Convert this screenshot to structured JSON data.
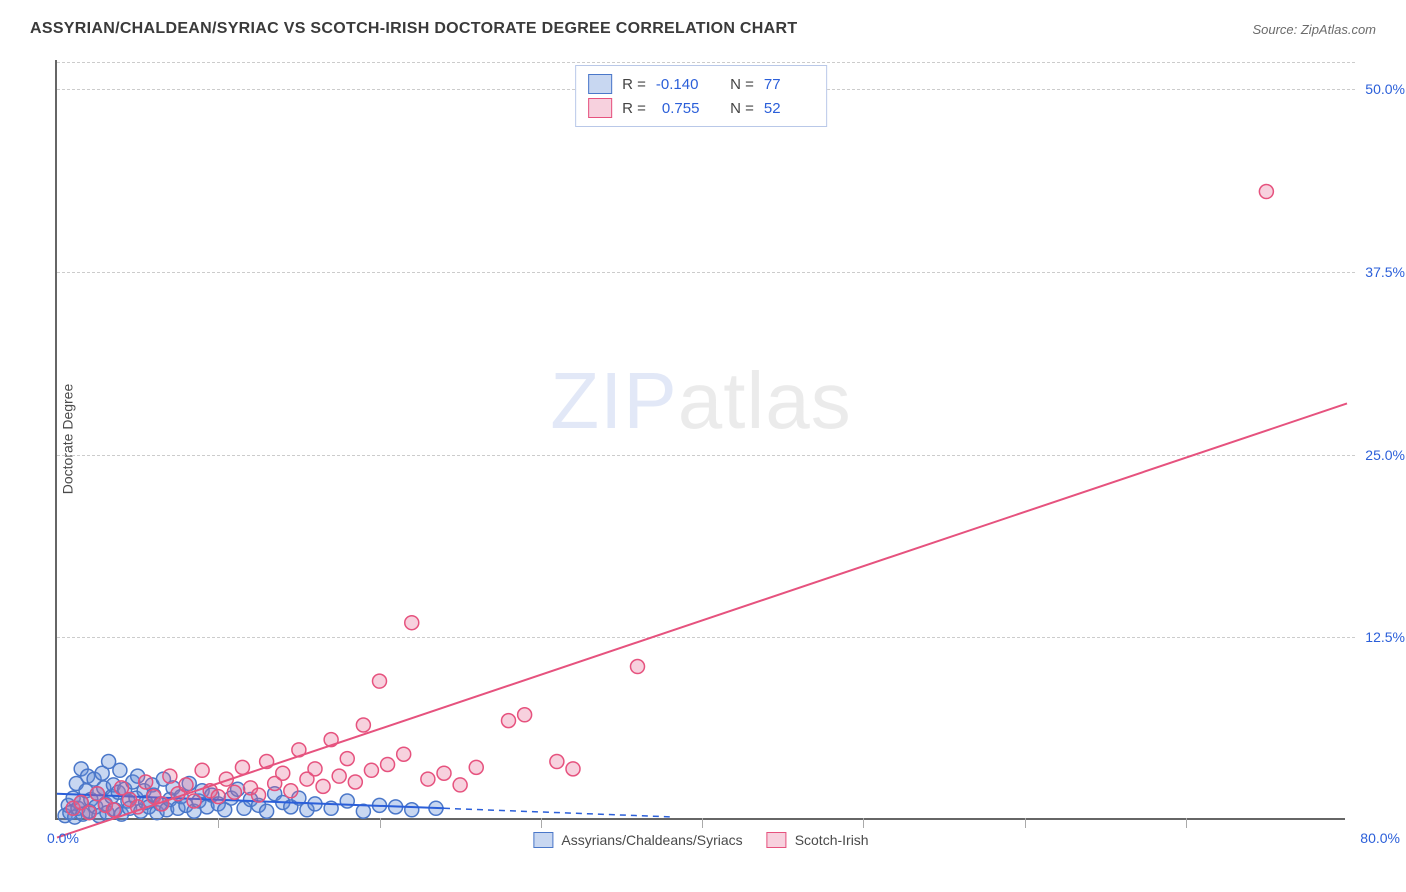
{
  "title": "ASSYRIAN/CHALDEAN/SYRIAC VS SCOTCH-IRISH DOCTORATE DEGREE CORRELATION CHART",
  "source": "Source: ZipAtlas.com",
  "watermark_a": "ZIP",
  "watermark_b": "atlas",
  "y_axis_title": "Doctorate Degree",
  "chart": {
    "type": "scatter",
    "xlim": [
      0,
      80
    ],
    "ylim": [
      0,
      52
    ],
    "x_origin_label": "0.0%",
    "x_max_label": "80.0%",
    "y_ticks": [
      12.5,
      25.0,
      37.5,
      50.0
    ],
    "y_tick_labels": [
      "12.5%",
      "25.0%",
      "37.5%",
      "50.0%"
    ],
    "x_tick_positions": [
      10,
      20,
      30,
      40,
      50,
      60,
      70
    ],
    "grid_color": "#cccccc",
    "background_color": "#ffffff",
    "marker_radius": 7,
    "marker_stroke_width": 1.5,
    "line_width": 2,
    "series": [
      {
        "name": "Assyrians/Chaldeans/Syriacs",
        "color_fill": "rgba(96,141,214,0.35)",
        "color_stroke": "#4a77c9",
        "line_color": "#2b5fd9",
        "R": "-0.140",
        "N": "77",
        "fit_line": {
          "x1": 0,
          "y1": 1.8,
          "x2": 24,
          "y2": 0.8,
          "dash_extend_to_x": 38
        },
        "points": [
          [
            0.5,
            0.3
          ],
          [
            0.7,
            1.0
          ],
          [
            0.8,
            0.5
          ],
          [
            1.0,
            1.5
          ],
          [
            1.1,
            0.2
          ],
          [
            1.2,
            2.5
          ],
          [
            1.3,
            0.8
          ],
          [
            1.5,
            3.5
          ],
          [
            1.5,
            1.2
          ],
          [
            1.6,
            0.4
          ],
          [
            1.8,
            2.0
          ],
          [
            1.9,
            3.0
          ],
          [
            2.0,
            0.6
          ],
          [
            2.1,
            1.4
          ],
          [
            2.3,
            2.8
          ],
          [
            2.4,
            0.9
          ],
          [
            2.5,
            1.8
          ],
          [
            2.6,
            0.3
          ],
          [
            2.8,
            3.2
          ],
          [
            2.9,
            2.2
          ],
          [
            3.0,
            1.1
          ],
          [
            3.1,
            0.5
          ],
          [
            3.2,
            4.0
          ],
          [
            3.4,
            1.6
          ],
          [
            3.5,
            2.4
          ],
          [
            3.6,
            0.7
          ],
          [
            3.8,
            1.9
          ],
          [
            3.9,
            3.4
          ],
          [
            4.0,
            0.4
          ],
          [
            4.2,
            2.1
          ],
          [
            4.4,
            1.3
          ],
          [
            4.5,
            0.8
          ],
          [
            4.7,
            2.6
          ],
          [
            4.9,
            1.5
          ],
          [
            5.0,
            3.0
          ],
          [
            5.2,
            0.6
          ],
          [
            5.4,
            2.0
          ],
          [
            5.5,
            1.2
          ],
          [
            5.7,
            0.9
          ],
          [
            5.9,
            2.4
          ],
          [
            6.0,
            1.7
          ],
          [
            6.2,
            0.5
          ],
          [
            6.4,
            1.1
          ],
          [
            6.6,
            2.8
          ],
          [
            6.8,
            0.7
          ],
          [
            7.0,
            1.4
          ],
          [
            7.2,
            2.2
          ],
          [
            7.5,
            0.8
          ],
          [
            7.7,
            1.6
          ],
          [
            8.0,
            1.0
          ],
          [
            8.2,
            2.5
          ],
          [
            8.5,
            0.6
          ],
          [
            8.8,
            1.3
          ],
          [
            9.0,
            2.0
          ],
          [
            9.3,
            0.9
          ],
          [
            9.6,
            1.7
          ],
          [
            10.0,
            1.1
          ],
          [
            10.4,
            0.7
          ],
          [
            10.8,
            1.5
          ],
          [
            11.2,
            2.1
          ],
          [
            11.6,
            0.8
          ],
          [
            12.0,
            1.4
          ],
          [
            12.5,
            1.0
          ],
          [
            13.0,
            0.6
          ],
          [
            13.5,
            1.8
          ],
          [
            14.0,
            1.2
          ],
          [
            14.5,
            0.9
          ],
          [
            15.0,
            1.5
          ],
          [
            15.5,
            0.7
          ],
          [
            16.0,
            1.1
          ],
          [
            17.0,
            0.8
          ],
          [
            18.0,
            1.3
          ],
          [
            19.0,
            0.6
          ],
          [
            20.0,
            1.0
          ],
          [
            21.0,
            0.9
          ],
          [
            22.0,
            0.7
          ],
          [
            23.5,
            0.8
          ]
        ]
      },
      {
        "name": "Scotch-Irish",
        "color_fill": "rgba(230,102,146,0.30)",
        "color_stroke": "#e6527e",
        "line_color": "#e6527e",
        "R": "0.755",
        "N": "52",
        "fit_line": {
          "x1": 0,
          "y1": -1.2,
          "x2": 80,
          "y2": 28.5
        },
        "points": [
          [
            1.0,
            0.8
          ],
          [
            1.5,
            1.2
          ],
          [
            2.0,
            0.5
          ],
          [
            2.5,
            1.8
          ],
          [
            3.0,
            1.0
          ],
          [
            3.5,
            0.7
          ],
          [
            4.0,
            2.2
          ],
          [
            4.5,
            1.4
          ],
          [
            5.0,
            0.9
          ],
          [
            5.5,
            2.6
          ],
          [
            6.0,
            1.6
          ],
          [
            6.5,
            1.1
          ],
          [
            7.0,
            3.0
          ],
          [
            7.5,
            1.8
          ],
          [
            8.0,
            2.4
          ],
          [
            8.5,
            1.3
          ],
          [
            9.0,
            3.4
          ],
          [
            9.5,
            2.0
          ],
          [
            10.0,
            1.6
          ],
          [
            10.5,
            2.8
          ],
          [
            11.0,
            1.9
          ],
          [
            11.5,
            3.6
          ],
          [
            12.0,
            2.2
          ],
          [
            12.5,
            1.7
          ],
          [
            13.0,
            4.0
          ],
          [
            13.5,
            2.5
          ],
          [
            14.0,
            3.2
          ],
          [
            14.5,
            2.0
          ],
          [
            15.0,
            4.8
          ],
          [
            15.5,
            2.8
          ],
          [
            16.0,
            3.5
          ],
          [
            16.5,
            2.3
          ],
          [
            17.0,
            5.5
          ],
          [
            17.5,
            3.0
          ],
          [
            18.0,
            4.2
          ],
          [
            18.5,
            2.6
          ],
          [
            19.0,
            6.5
          ],
          [
            19.5,
            3.4
          ],
          [
            20.0,
            9.5
          ],
          [
            20.5,
            3.8
          ],
          [
            21.5,
            4.5
          ],
          [
            22.0,
            13.5
          ],
          [
            23.0,
            2.8
          ],
          [
            24.0,
            3.2
          ],
          [
            25.0,
            2.4
          ],
          [
            26.0,
            3.6
          ],
          [
            28.0,
            6.8
          ],
          [
            29.0,
            7.2
          ],
          [
            31.0,
            4.0
          ],
          [
            32.0,
            3.5
          ],
          [
            36.0,
            10.5
          ],
          [
            75.0,
            43.0
          ]
        ]
      }
    ]
  },
  "legend_series_a_label": "Assyrians/Chaldeans/Syriacs",
  "legend_series_b_label": "Scotch-Irish",
  "stat_labels": {
    "R": "R =",
    "N": "N ="
  }
}
